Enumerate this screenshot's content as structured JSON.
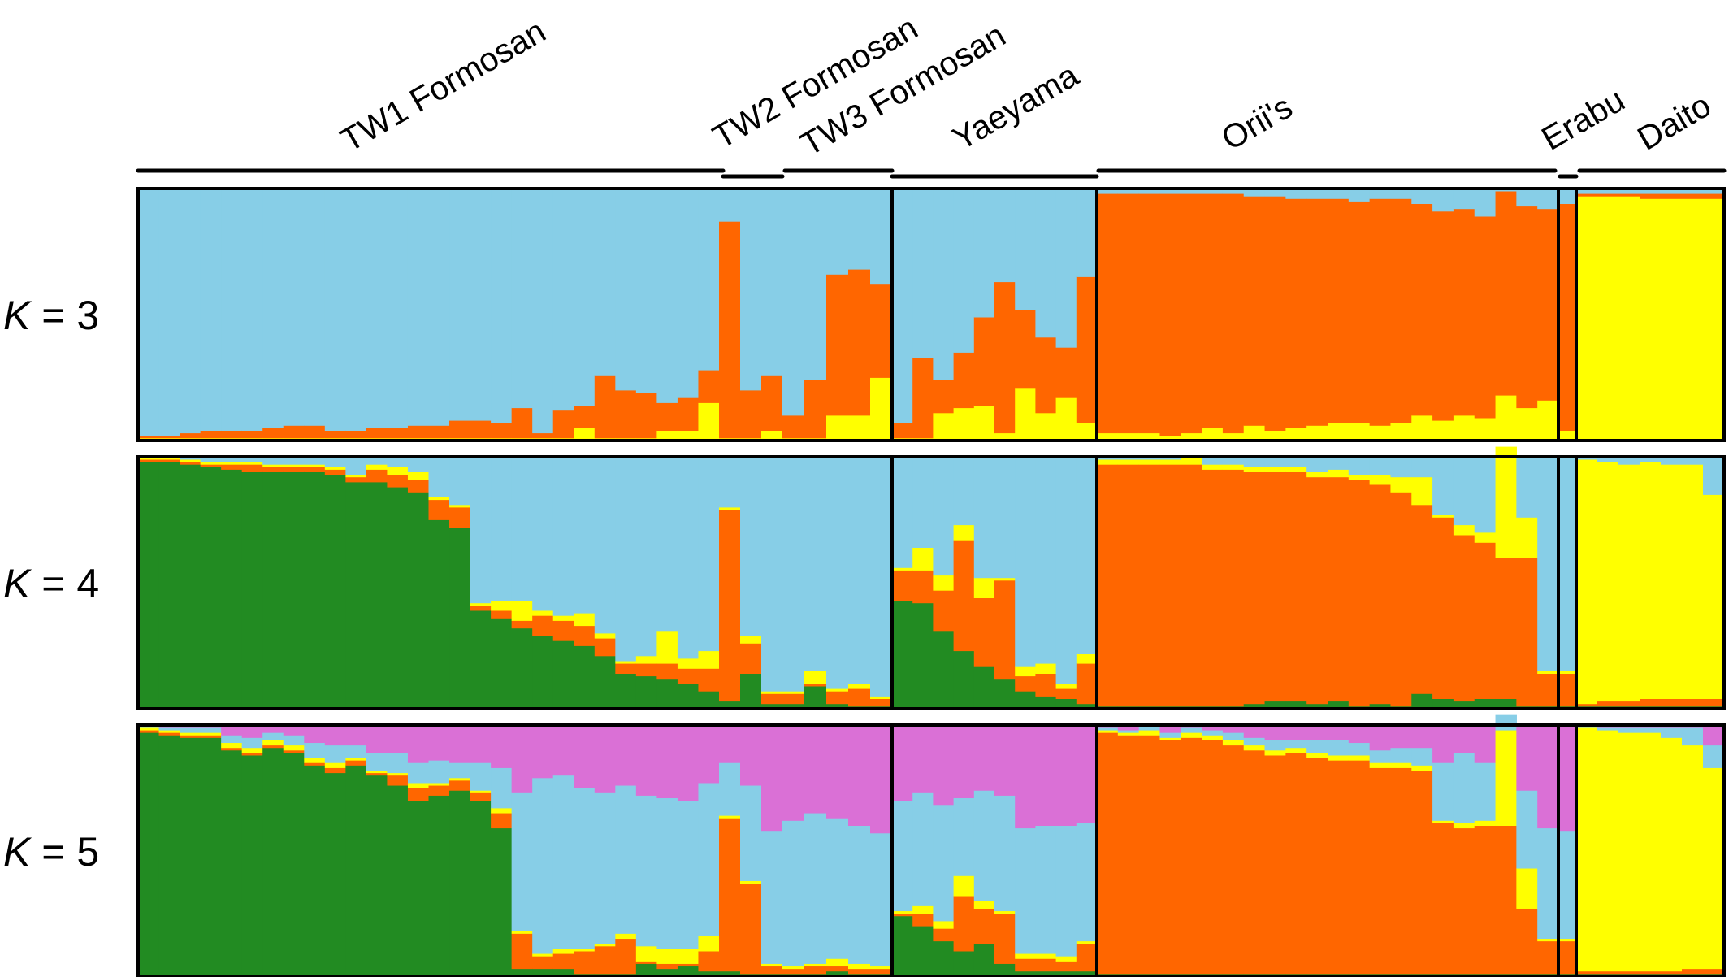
{
  "chart_data": {
    "type": "bar",
    "stacked": true,
    "colors": {
      "light_blue": "#87CEE7",
      "orange": "#FF6600",
      "yellow": "#FFFF00",
      "green": "#228B22",
      "magenta": "#DA70D6"
    },
    "populations": [
      {
        "name": "TW1 Formosan",
        "individuals": 28
      },
      {
        "name": "TW2 Formosan",
        "individuals": 3
      },
      {
        "name": "TW3 Formosan",
        "individuals": 5
      },
      {
        "name": "Yaeyama",
        "individuals": 10
      },
      {
        "name": "Orii's",
        "individuals": 22
      },
      {
        "name": "Erabu",
        "individuals": 1
      },
      {
        "name": "Daito",
        "individuals": 7
      }
    ],
    "panels": [
      {
        "k_label": "K = 3",
        "components": [
          "yellow",
          "orange",
          "light_blue"
        ],
        "values": [
          [
            0.01,
            0.01
          ],
          [
            0.01,
            0.01
          ],
          [
            0.01,
            0.02
          ],
          [
            0.01,
            0.03
          ],
          [
            0.01,
            0.03
          ],
          [
            0.01,
            0.03
          ],
          [
            0.01,
            0.04
          ],
          [
            0.01,
            0.05
          ],
          [
            0.01,
            0.05
          ],
          [
            0.01,
            0.03
          ],
          [
            0.01,
            0.03
          ],
          [
            0.01,
            0.04
          ],
          [
            0.01,
            0.04
          ],
          [
            0.01,
            0.05
          ],
          [
            0.01,
            0.05
          ],
          [
            0.01,
            0.07
          ],
          [
            0.01,
            0.07
          ],
          [
            0.01,
            0.06
          ],
          [
            0.01,
            0.12
          ],
          [
            0.01,
            0.02
          ],
          [
            0.01,
            0.11
          ],
          [
            0.05,
            0.09
          ],
          [
            0.01,
            0.25
          ],
          [
            0.01,
            0.19
          ],
          [
            0.01,
            0.18
          ],
          [
            0.04,
            0.11
          ],
          [
            0.04,
            0.13
          ],
          [
            0.15,
            0.13
          ],
          [
            0.01,
            0.86
          ],
          [
            0.01,
            0.19
          ],
          [
            0.04,
            0.22
          ],
          [
            0.01,
            0.09
          ],
          [
            0.01,
            0.23
          ],
          [
            0.1,
            0.56
          ],
          [
            0.1,
            0.58
          ],
          [
            0.25,
            0.37
          ],
          [
            0.01,
            0.06
          ],
          [
            0.01,
            0.32
          ],
          [
            0.11,
            0.13
          ],
          [
            0.13,
            0.22
          ],
          [
            0.14,
            0.35
          ],
          [
            0.03,
            0.6
          ],
          [
            0.21,
            0.31
          ],
          [
            0.11,
            0.3
          ],
          [
            0.17,
            0.2
          ],
          [
            0.07,
            0.58
          ],
          [
            0.03,
            0.95
          ],
          [
            0.03,
            0.95
          ],
          [
            0.03,
            0.95
          ],
          [
            0.02,
            0.96
          ],
          [
            0.03,
            0.95
          ],
          [
            0.05,
            0.93
          ],
          [
            0.03,
            0.95
          ],
          [
            0.06,
            0.91
          ],
          [
            0.04,
            0.93
          ],
          [
            0.05,
            0.91
          ],
          [
            0.06,
            0.9
          ],
          [
            0.07,
            0.89
          ],
          [
            0.07,
            0.88
          ],
          [
            0.06,
            0.9
          ],
          [
            0.07,
            0.89
          ],
          [
            0.1,
            0.84
          ],
          [
            0.08,
            0.83
          ],
          [
            0.1,
            0.82
          ],
          [
            0.09,
            0.8
          ],
          [
            0.18,
            0.81
          ],
          [
            0.13,
            0.8
          ],
          [
            0.16,
            0.76
          ],
          [
            0.04,
            0.9
          ],
          [
            0.97,
            0.01
          ],
          [
            0.97,
            0.01
          ],
          [
            0.97,
            0.01
          ],
          [
            0.96,
            0.02
          ],
          [
            0.96,
            0.02
          ],
          [
            0.96,
            0.02
          ],
          [
            0.96,
            0.02
          ]
        ]
      },
      {
        "k_label": "K = 4",
        "components": [
          "green",
          "orange",
          "yellow",
          "light_blue"
        ],
        "values": [
          [
            0.98,
            0.01,
            0.01
          ],
          [
            0.98,
            0.01,
            0.01
          ],
          [
            0.97,
            0.01,
            0.01
          ],
          [
            0.96,
            0.01,
            0.01
          ],
          [
            0.95,
            0.02,
            0.01
          ],
          [
            0.94,
            0.03,
            0.01
          ],
          [
            0.94,
            0.02,
            0.01
          ],
          [
            0.94,
            0.02,
            0.01
          ],
          [
            0.94,
            0.02,
            0.01
          ],
          [
            0.93,
            0.02,
            0.01
          ],
          [
            0.9,
            0.02,
            0.01
          ],
          [
            0.9,
            0.05,
            0.02
          ],
          [
            0.88,
            0.05,
            0.03
          ],
          [
            0.86,
            0.05,
            0.03
          ],
          [
            0.75,
            0.08,
            0.01
          ],
          [
            0.72,
            0.08,
            0.01
          ],
          [
            0.39,
            0.02,
            0.01
          ],
          [
            0.36,
            0.03,
            0.04
          ],
          [
            0.32,
            0.03,
            0.08
          ],
          [
            0.29,
            0.08,
            0.02
          ],
          [
            0.27,
            0.08,
            0.02
          ],
          [
            0.25,
            0.08,
            0.05
          ],
          [
            0.21,
            0.07,
            0.02
          ],
          [
            0.14,
            0.04,
            0.01
          ],
          [
            0.13,
            0.05,
            0.03
          ],
          [
            0.12,
            0.06,
            0.13
          ],
          [
            0.1,
            0.06,
            0.04
          ],
          [
            0.07,
            0.09,
            0.07
          ],
          [
            0.03,
            0.76,
            0.01
          ],
          [
            0.14,
            0.12,
            0.03
          ],
          [
            0.02,
            0.04,
            0.01
          ],
          [
            0.02,
            0.04,
            0.01
          ],
          [
            0.09,
            0.01,
            0.05
          ],
          [
            0.02,
            0.05,
            0.01
          ],
          [
            0.01,
            0.07,
            0.02
          ],
          [
            0.01,
            0.03,
            0.01
          ],
          [
            0.43,
            0.12,
            0.01
          ],
          [
            0.42,
            0.13,
            0.09
          ],
          [
            0.31,
            0.16,
            0.06
          ],
          [
            0.23,
            0.44,
            0.06
          ],
          [
            0.17,
            0.27,
            0.08
          ],
          [
            0.12,
            0.39,
            0.01
          ],
          [
            0.07,
            0.06,
            0.04
          ],
          [
            0.05,
            0.09,
            0.04
          ],
          [
            0.04,
            0.04,
            0.02
          ],
          [
            0.02,
            0.16,
            0.04
          ],
          [
            0.01,
            0.96,
            0.02
          ],
          [
            0.01,
            0.96,
            0.02
          ],
          [
            0.01,
            0.96,
            0.02
          ],
          [
            0.01,
            0.96,
            0.02
          ],
          [
            0.01,
            0.96,
            0.03
          ],
          [
            0.01,
            0.94,
            0.02
          ],
          [
            0.01,
            0.94,
            0.02
          ],
          [
            0.02,
            0.92,
            0.02
          ],
          [
            0.03,
            0.91,
            0.02
          ],
          [
            0.03,
            0.91,
            0.02
          ],
          [
            0.02,
            0.9,
            0.02
          ],
          [
            0.03,
            0.89,
            0.03
          ],
          [
            0.01,
            0.9,
            0.02
          ],
          [
            0.02,
            0.87,
            0.04
          ],
          [
            0.01,
            0.85,
            0.06
          ],
          [
            0.06,
            0.75,
            0.11
          ],
          [
            0.04,
            0.72,
            0.01
          ],
          [
            0.03,
            0.66,
            0.04
          ],
          [
            0.04,
            0.62,
            0.04
          ],
          [
            0.04,
            0.56,
            0.44
          ],
          [
            0.01,
            0.59,
            0.16
          ],
          [
            0.01,
            0.13,
            0.01
          ],
          [
            0.01,
            0.13,
            0.01
          ],
          [
            0.01,
            0.01,
            0.97
          ],
          [
            0.01,
            0.02,
            0.95
          ],
          [
            0.01,
            0.02,
            0.94
          ],
          [
            0.01,
            0.03,
            0.94
          ],
          [
            0.01,
            0.03,
            0.93
          ],
          [
            0.01,
            0.03,
            0.93
          ],
          [
            0.01,
            0.03,
            0.81
          ]
        ]
      },
      {
        "k_label": "K = 5",
        "components": [
          "green",
          "orange",
          "yellow",
          "light_blue",
          "magenta"
        ],
        "values": [
          [
            0.97,
            0.01,
            0.01,
            0.01
          ],
          [
            0.96,
            0.01,
            0.01,
            0.01
          ],
          [
            0.95,
            0.01,
            0.01,
            0.02
          ],
          [
            0.95,
            0.01,
            0.01,
            0.02
          ],
          [
            0.9,
            0.01,
            0.02,
            0.03
          ],
          [
            0.88,
            0.01,
            0.02,
            0.04
          ],
          [
            0.91,
            0.01,
            0.02,
            0.03
          ],
          [
            0.89,
            0.01,
            0.02,
            0.04
          ],
          [
            0.84,
            0.01,
            0.02,
            0.06
          ],
          [
            0.81,
            0.02,
            0.02,
            0.07
          ],
          [
            0.84,
            0.02,
            0.01,
            0.05
          ],
          [
            0.8,
            0.01,
            0.01,
            0.07
          ],
          [
            0.76,
            0.04,
            0.01,
            0.08
          ],
          [
            0.7,
            0.05,
            0.02,
            0.08
          ],
          [
            0.72,
            0.04,
            0.01,
            0.09
          ],
          [
            0.74,
            0.04,
            0.01,
            0.06
          ],
          [
            0.7,
            0.03,
            0.01,
            0.11
          ],
          [
            0.59,
            0.06,
            0.02,
            0.16
          ],
          [
            0.03,
            0.14,
            0.01,
            0.55
          ],
          [
            0.03,
            0.05,
            0.01,
            0.7
          ],
          [
            0.03,
            0.06,
            0.02,
            0.69
          ],
          [
            0.01,
            0.09,
            0.01,
            0.64
          ],
          [
            0.01,
            0.11,
            0.01,
            0.6
          ],
          [
            0.01,
            0.14,
            0.02,
            0.59
          ],
          [
            0.05,
            0.01,
            0.06,
            0.6
          ],
          [
            0.03,
            0.02,
            0.06,
            0.6
          ],
          [
            0.04,
            0.01,
            0.06,
            0.59
          ],
          [
            0.02,
            0.08,
            0.06,
            0.61
          ],
          [
            0.02,
            0.61,
            0.01,
            0.21
          ],
          [
            0.01,
            0.36,
            0.01,
            0.38
          ],
          [
            0.01,
            0.03,
            0.01,
            0.53
          ],
          [
            0.01,
            0.02,
            0.01,
            0.58
          ],
          [
            0.01,
            0.03,
            0.01,
            0.6
          ],
          [
            0.02,
            0.02,
            0.03,
            0.56
          ],
          [
            0.01,
            0.02,
            0.02,
            0.55
          ],
          [
            0.01,
            0.02,
            0.01,
            0.53
          ],
          [
            0.24,
            0.01,
            0.01,
            0.44
          ],
          [
            0.2,
            0.05,
            0.03,
            0.45
          ],
          [
            0.14,
            0.05,
            0.03,
            0.46
          ],
          [
            0.1,
            0.22,
            0.08,
            0.31
          ],
          [
            0.13,
            0.14,
            0.03,
            0.44
          ],
          [
            0.05,
            0.2,
            0.01,
            0.46
          ],
          [
            0.02,
            0.05,
            0.02,
            0.5
          ],
          [
            0.02,
            0.05,
            0.02,
            0.51
          ],
          [
            0.02,
            0.04,
            0.02,
            0.52
          ],
          [
            0.02,
            0.11,
            0.01,
            0.47
          ],
          [
            0.01,
            0.96,
            0.01,
            0.01
          ],
          [
            0.01,
            0.95,
            0.01,
            0.01
          ],
          [
            0.01,
            0.95,
            0.02,
            0.02
          ],
          [
            0.01,
            0.93,
            0.01,
            0.02
          ],
          [
            0.01,
            0.94,
            0.02,
            0.02
          ],
          [
            0.01,
            0.93,
            0.02,
            0.02
          ],
          [
            0.01,
            0.91,
            0.02,
            0.03
          ],
          [
            0.01,
            0.89,
            0.02,
            0.03
          ],
          [
            0.01,
            0.87,
            0.02,
            0.04
          ],
          [
            0.01,
            0.88,
            0.02,
            0.03
          ],
          [
            0.01,
            0.86,
            0.02,
            0.05
          ],
          [
            0.01,
            0.85,
            0.02,
            0.06
          ],
          [
            0.01,
            0.85,
            0.02,
            0.05
          ],
          [
            0.01,
            0.82,
            0.02,
            0.05
          ],
          [
            0.01,
            0.82,
            0.02,
            0.06
          ],
          [
            0.01,
            0.81,
            0.02,
            0.07
          ],
          [
            0.01,
            0.6,
            0.01,
            0.23
          ],
          [
            0.01,
            0.58,
            0.02,
            0.28
          ],
          [
            0.01,
            0.59,
            0.02,
            0.23
          ],
          [
            0.01,
            0.59,
            0.38,
            0.06
          ],
          [
            0.01,
            0.26,
            0.16,
            0.31
          ],
          [
            0.01,
            0.13,
            0.01,
            0.44
          ],
          [
            0.01,
            0.13,
            0.01,
            0.43
          ],
          [
            0.01,
            0.01,
            0.97,
            0.01
          ],
          [
            0.01,
            0.01,
            0.96,
            0.01
          ],
          [
            0.01,
            0.01,
            0.95,
            0.02
          ],
          [
            0.01,
            0.01,
            0.95,
            0.02
          ],
          [
            0.01,
            0.01,
            0.93,
            0.04
          ],
          [
            0.01,
            0.02,
            0.89,
            0.07
          ],
          [
            0.01,
            0.02,
            0.8,
            0.09
          ]
        ]
      }
    ]
  }
}
